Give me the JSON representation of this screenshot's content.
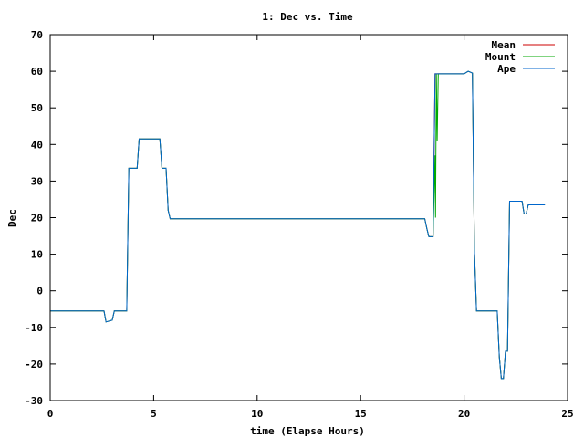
{
  "chart_data": {
    "type": "line",
    "title": "1: Dec vs. Time",
    "xlabel": "time (Elapse Hours)",
    "ylabel": "Dec",
    "xlim": [
      0,
      25
    ],
    "ylim": [
      -30,
      70
    ],
    "xticks": [
      0,
      5,
      10,
      15,
      20,
      25
    ],
    "yticks": [
      -30,
      -20,
      -10,
      0,
      10,
      20,
      30,
      40,
      50,
      60,
      70
    ],
    "grid": false,
    "legend_position": "top-right",
    "series": [
      {
        "name": "Mean",
        "color": "#cc0000",
        "x": [
          0,
          2.6,
          2.7,
          3.0,
          3.1,
          3.7,
          3.8,
          4.2,
          4.3,
          5.3,
          5.4,
          5.6,
          5.7,
          5.8,
          18.1,
          18.2,
          18.3,
          18.5,
          18.6,
          18.7,
          20.0,
          20.2,
          20.4,
          20.5,
          20.6,
          21.6,
          21.7,
          21.8,
          21.9,
          22.0,
          22.1,
          22.2,
          22.3,
          22.8,
          22.9,
          23.0,
          23.1,
          23.3,
          23.9
        ],
        "y": [
          -5.5,
          -5.5,
          -8.5,
          -8.0,
          -5.5,
          -5.5,
          33.5,
          33.5,
          41.5,
          41.5,
          33.5,
          33.5,
          22.0,
          19.7,
          19.7,
          17.0,
          14.8,
          14.8,
          59.3,
          59.3,
          59.3,
          60.0,
          59.5,
          11.0,
          -5.5,
          -5.5,
          -18.0,
          -24.0,
          -24.0,
          -16.5,
          -16.5,
          24.5,
          24.5,
          24.5,
          21.0,
          21.0,
          23.5,
          23.5,
          23.5
        ]
      },
      {
        "name": "Mount",
        "color": "#00aa00",
        "x": [
          0,
          2.6,
          2.7,
          3.0,
          3.1,
          3.7,
          3.8,
          4.2,
          4.3,
          5.3,
          5.4,
          5.6,
          5.7,
          5.8,
          18.1,
          18.2,
          18.3,
          18.5,
          18.6,
          18.62,
          18.66,
          18.7,
          18.75,
          18.8,
          20.0,
          20.2,
          20.4,
          20.5,
          20.6,
          21.6,
          21.7,
          21.8,
          21.9,
          22.0,
          22.1,
          22.2,
          22.3,
          22.8,
          22.9,
          23.0,
          23.1,
          23.3,
          23.9
        ],
        "y": [
          -5.5,
          -5.5,
          -8.5,
          -8.0,
          -5.5,
          -5.5,
          33.5,
          33.5,
          41.5,
          41.5,
          33.5,
          33.5,
          22.0,
          19.7,
          19.7,
          17.0,
          14.8,
          14.8,
          37.0,
          20.0,
          59.3,
          41.0,
          59.3,
          59.3,
          59.3,
          60.0,
          59.5,
          11.0,
          -5.5,
          -5.5,
          -18.0,
          -24.0,
          -24.0,
          -16.5,
          -16.5,
          24.5,
          24.5,
          24.5,
          21.0,
          21.0,
          23.5,
          23.5,
          23.5
        ]
      },
      {
        "name": "Ape",
        "color": "#0066cc",
        "x": [
          0,
          2.6,
          2.7,
          3.0,
          3.1,
          3.7,
          3.8,
          4.2,
          4.3,
          5.3,
          5.4,
          5.6,
          5.7,
          5.8,
          18.1,
          18.2,
          18.3,
          18.5,
          18.6,
          18.7,
          20.0,
          20.2,
          20.4,
          20.5,
          20.6,
          21.6,
          21.7,
          21.8,
          21.9,
          22.0,
          22.1,
          22.2,
          22.3,
          22.8,
          22.9,
          23.0,
          23.1,
          23.3,
          23.9
        ],
        "y": [
          -5.5,
          -5.5,
          -8.5,
          -8.0,
          -5.5,
          -5.5,
          33.5,
          33.5,
          41.5,
          41.5,
          33.5,
          33.5,
          22.0,
          19.7,
          19.7,
          17.0,
          14.8,
          14.8,
          59.3,
          59.3,
          59.3,
          60.0,
          59.5,
          11.0,
          -5.5,
          -5.5,
          -18.0,
          -24.0,
          -24.0,
          -16.5,
          -16.5,
          24.5,
          24.5,
          24.5,
          21.0,
          21.0,
          23.5,
          23.5,
          23.5
        ]
      }
    ]
  }
}
